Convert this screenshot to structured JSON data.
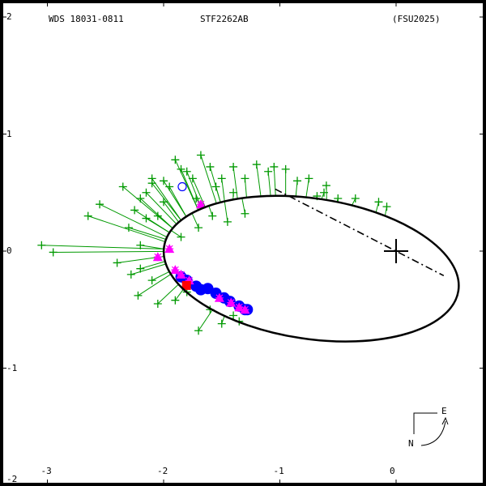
{
  "header": {
    "wds_id": "WDS 18031-0811",
    "discoverer": "STF2262AB",
    "reference": "(FSU2025)"
  },
  "compass": {
    "north_label": "N",
    "east_label": "E"
  },
  "chart_data": {
    "type": "scatter",
    "title": "WDS 18031-0811   STF2262AB   (FSU2025)",
    "xlabel": "",
    "ylabel": "",
    "xlim": [
      -3.4,
      0.8
    ],
    "ylim": [
      -2.0,
      2.1
    ],
    "x_ticks": [
      -3,
      -2,
      -1,
      0
    ],
    "y_ticks": [
      2,
      1,
      0,
      -1,
      -2
    ],
    "x_tick_labels": [
      "-3",
      "-2",
      "-1",
      "0"
    ],
    "y_tick_labels": [
      "2",
      "1",
      "0",
      "-1",
      "-2"
    ],
    "grid": false,
    "primary_star": {
      "x": 0,
      "y": 0,
      "marker": "large-plus"
    },
    "orbit_ellipse": {
      "cx": -0.73,
      "cy": -0.15,
      "rx": 1.28,
      "ry": 0.6,
      "rotation_deg": -8.5
    },
    "line_of_nodes": [
      [
        -1.04,
        0.53
      ],
      [
        0.41,
        -0.21
      ]
    ],
    "series": [
      {
        "name": "micrometer observations",
        "color": "#009900",
        "marker": "plus-with-residual-line",
        "points": [
          [
            -3.05,
            0.05
          ],
          [
            -2.95,
            -0.01
          ],
          [
            -2.65,
            0.3
          ],
          [
            -2.55,
            0.4
          ],
          [
            -2.35,
            0.55
          ],
          [
            -2.2,
            0.45
          ],
          [
            -2.1,
            0.58
          ],
          [
            -2.1,
            0.62
          ],
          [
            -2.0,
            0.6
          ],
          [
            -1.95,
            0.55
          ],
          [
            -2.25,
            0.35
          ],
          [
            -2.15,
            0.28
          ],
          [
            -2.05,
            0.3
          ],
          [
            -2.3,
            0.2
          ],
          [
            -2.2,
            0.05
          ],
          [
            -2.4,
            -0.1
          ],
          [
            -2.28,
            -0.2
          ],
          [
            -2.22,
            -0.38
          ],
          [
            -2.05,
            -0.45
          ],
          [
            -2.1,
            -0.25
          ],
          [
            -2.2,
            -0.15
          ],
          [
            -1.9,
            0.78
          ],
          [
            -1.85,
            0.7
          ],
          [
            -1.8,
            0.68
          ],
          [
            -1.75,
            0.62
          ],
          [
            -1.6,
            0.72
          ],
          [
            -1.5,
            0.62
          ],
          [
            -1.4,
            0.72
          ],
          [
            -1.3,
            0.62
          ],
          [
            -1.2,
            0.74
          ],
          [
            -1.1,
            0.68
          ],
          [
            -1.05,
            0.72
          ],
          [
            -0.95,
            0.7
          ],
          [
            -0.85,
            0.6
          ],
          [
            -0.75,
            0.62
          ],
          [
            -0.6,
            0.56
          ],
          [
            -0.5,
            0.45
          ],
          [
            -0.35,
            0.45
          ],
          [
            -0.15,
            0.42
          ],
          [
            -0.08,
            0.38
          ],
          [
            -1.58,
            0.3
          ],
          [
            -1.45,
            0.25
          ],
          [
            -1.3,
            0.32
          ],
          [
            -1.7,
            0.2
          ],
          [
            -1.85,
            0.12
          ],
          [
            -1.6,
            -0.5
          ],
          [
            -1.5,
            -0.62
          ],
          [
            -1.4,
            -0.55
          ],
          [
            -1.35,
            -0.6
          ],
          [
            -1.7,
            -0.68
          ],
          [
            -1.8,
            -0.35
          ],
          [
            -1.9,
            -0.42
          ],
          [
            -2.15,
            0.5
          ],
          [
            -2.0,
            0.42
          ],
          [
            -1.72,
            0.45
          ],
          [
            -1.55,
            0.55
          ],
          [
            -1.68,
            0.82
          ],
          [
            -1.4,
            0.5
          ],
          [
            -0.68,
            0.47
          ],
          [
            -0.62,
            0.5
          ]
        ]
      },
      {
        "name": "interferometric (blue)",
        "color": "#0000ff",
        "marker": "filled-circle",
        "points": [
          [
            -1.85,
            -0.22
          ],
          [
            -1.8,
            -0.25
          ],
          [
            -1.72,
            -0.3
          ],
          [
            -1.68,
            -0.33
          ],
          [
            -1.62,
            -0.32
          ],
          [
            -1.55,
            -0.36
          ],
          [
            -1.48,
            -0.4
          ],
          [
            -1.43,
            -0.43
          ],
          [
            -1.35,
            -0.47
          ],
          [
            -1.3,
            -0.5
          ],
          [
            -1.28,
            -0.5
          ]
        ]
      },
      {
        "name": "speckle (magenta)",
        "color": "#ff00ff",
        "marker": "star/triangle",
        "points": [
          [
            -1.9,
            -0.16
          ],
          [
            -1.85,
            -0.2
          ],
          [
            -1.78,
            -0.25
          ],
          [
            -1.52,
            -0.4
          ],
          [
            -1.42,
            -0.44
          ],
          [
            -1.35,
            -0.48
          ],
          [
            -1.3,
            -0.5
          ],
          [
            -2.05,
            -0.05
          ],
          [
            -1.95,
            0.02
          ],
          [
            -1.68,
            0.4
          ]
        ]
      },
      {
        "name": "latest observation (red)",
        "color": "#ff0000",
        "marker": "filled-square",
        "points": [
          [
            -1.8,
            -0.29
          ]
        ]
      },
      {
        "name": "outlier (blue open)",
        "color": "#0000ff",
        "marker": "open-circle",
        "points": [
          [
            -1.84,
            0.55
          ]
        ]
      }
    ]
  }
}
